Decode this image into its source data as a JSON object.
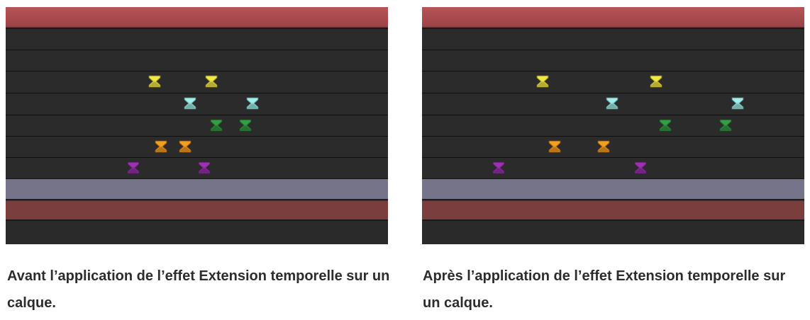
{
  "colors": {
    "yellow": "#dcd13a",
    "cyan": "#8ed6cf",
    "green": "#2f8a3c",
    "orange": "#e38d1c",
    "purple": "#8a2c9b"
  },
  "icons": {
    "keyframe": "hourglass-keyframe-icon"
  },
  "panels": [
    {
      "caption": "Avant l’application de l’effet Extension temporelle sur un calque.",
      "keyframes": [
        {
          "color": "yellow",
          "row": 0,
          "positions": [
            210,
            290
          ]
        },
        {
          "color": "cyan",
          "row": 1,
          "positions": [
            260,
            348
          ]
        },
        {
          "color": "green",
          "row": 2,
          "positions": [
            297,
            338
          ]
        },
        {
          "color": "orange",
          "row": 3,
          "positions": [
            219,
            253
          ]
        },
        {
          "color": "purple",
          "row": 4,
          "positions": [
            180,
            280
          ]
        }
      ]
    },
    {
      "caption": "Après l’application de l’effet Extension temporelle sur un calque.",
      "keyframes": [
        {
          "color": "yellow",
          "row": 0,
          "positions": [
            170,
            330
          ]
        },
        {
          "color": "cyan",
          "row": 1,
          "positions": [
            268,
            445
          ]
        },
        {
          "color": "green",
          "row": 2,
          "positions": [
            343,
            428
          ]
        },
        {
          "color": "orange",
          "row": 3,
          "positions": [
            187,
            256
          ]
        },
        {
          "color": "purple",
          "row": 4,
          "positions": [
            108,
            308
          ]
        }
      ]
    }
  ]
}
